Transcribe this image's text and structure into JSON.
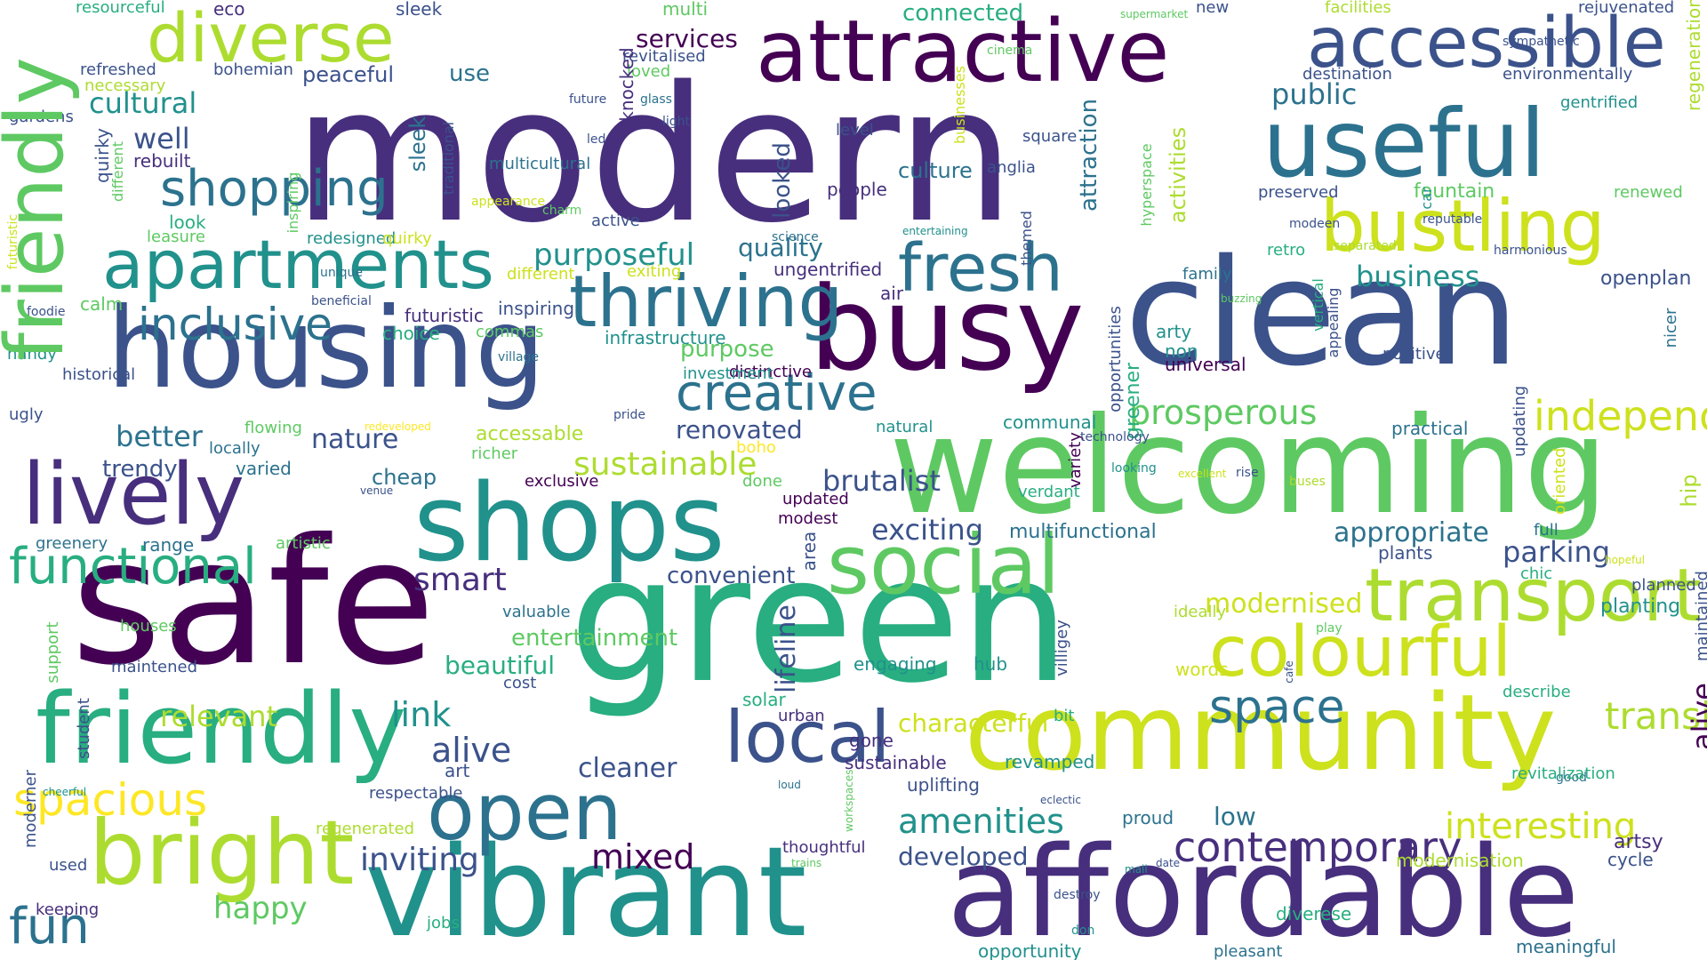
{
  "word_cloud": {
    "palette": [
      "#440154",
      "#472f7d",
      "#3b528b",
      "#2c728e",
      "#21918c",
      "#28ae80",
      "#5ec962",
      "#addc30",
      "#fde725"
    ],
    "words": [
      {
        "text": "modern",
        "c": "#472f7d"
      },
      {
        "text": "safe",
        "c": "#440154"
      },
      {
        "text": "green",
        "c": "#28ae80"
      },
      {
        "text": "clean",
        "c": "#3b528b"
      },
      {
        "text": "welcoming",
        "c": "#5ec962"
      },
      {
        "text": "vibrant",
        "c": "#21918c"
      },
      {
        "text": "affordable",
        "c": "#472f7d"
      },
      {
        "text": "community",
        "c": "#cde11d"
      },
      {
        "text": "attractive",
        "c": "#440154"
      },
      {
        "text": "useful",
        "c": "#2c728e"
      },
      {
        "text": "busy",
        "c": "#440154"
      },
      {
        "text": "housing",
        "c": "#3b528b"
      },
      {
        "text": "shops",
        "c": "#21918c"
      },
      {
        "text": "friendly",
        "c": "#5ec962"
      },
      {
        "text": "lively",
        "c": "#28ae80"
      },
      {
        "text": "social",
        "c": "#472f7d"
      },
      {
        "text": "accessible",
        "c": "#5ec962"
      },
      {
        "text": "bustling",
        "c": "#3b528b"
      },
      {
        "text": "diverse",
        "c": "#cde11d"
      },
      {
        "text": "apartments",
        "c": "#addc30"
      },
      {
        "text": "thriving",
        "c": "#21918c"
      },
      {
        "text": "fresh",
        "c": "#2c728e"
      },
      {
        "text": "bright",
        "c": "#2c728e"
      },
      {
        "text": "open",
        "c": "#addc30"
      },
      {
        "text": "colourful",
        "c": "#2c728e"
      },
      {
        "text": "transport",
        "c": "#cde11d"
      },
      {
        "text": "local",
        "c": "#addc30"
      },
      {
        "text": "fun",
        "c": "#3b528b"
      },
      {
        "text": "functional",
        "c": "#2c728e"
      },
      {
        "text": "inclusive",
        "c": "#28ae80"
      },
      {
        "text": "creative",
        "c": "#2c728e"
      },
      {
        "text": "shopping",
        "c": "#2c728e"
      },
      {
        "text": "space",
        "c": "#2c728e"
      },
      {
        "text": "spacious",
        "c": "#2c728e"
      },
      {
        "text": "prosperous",
        "c": "#fde725"
      },
      {
        "text": "independent",
        "c": "#5ec962"
      },
      {
        "text": "smart",
        "c": "#cde11d"
      },
      {
        "text": "sustainable",
        "c": "#472f7d"
      },
      {
        "text": "contemporary",
        "c": "#addc30"
      },
      {
        "text": "inviting",
        "c": "#472f7d"
      },
      {
        "text": "mixed",
        "c": "#3b528b"
      },
      {
        "text": "amenities",
        "c": "#440154"
      },
      {
        "text": "interesting",
        "c": "#21918c"
      },
      {
        "text": "transit",
        "c": "#cde11d"
      },
      {
        "text": "link",
        "c": "#addc30"
      },
      {
        "text": "alive",
        "c": "#440154"
      },
      {
        "text": "cleaner",
        "c": "#21918c"
      },
      {
        "text": "happy",
        "c": "#3b528b"
      },
      {
        "text": "exciting",
        "c": "#3b528b"
      },
      {
        "text": "better",
        "c": "#5ec962"
      },
      {
        "text": "nature",
        "c": "#3b528b"
      },
      {
        "text": "trendy",
        "c": "#2c728e"
      },
      {
        "text": "relevant",
        "c": "#3b528b"
      },
      {
        "text": "cultural",
        "c": "#3b528b"
      },
      {
        "text": "well",
        "c": "#addc30"
      },
      {
        "text": "purposeful",
        "c": "#21918c"
      },
      {
        "text": "public",
        "c": "#3b528b"
      },
      {
        "text": "business",
        "c": "#21918c"
      },
      {
        "text": "appropriate",
        "c": "#2c728e"
      },
      {
        "text": "modernised",
        "c": "#21918c"
      },
      {
        "text": "parking",
        "c": "#2c728e"
      },
      {
        "text": "developed",
        "c": "#cde11d"
      },
      {
        "text": "low",
        "c": "#3b528b"
      },
      {
        "text": "quality",
        "c": "#3b528b"
      },
      {
        "text": "characterful",
        "c": "#2c728e"
      },
      {
        "text": "renovated",
        "c": "#2c728e"
      },
      {
        "text": "brutalist",
        "c": "#cde11d"
      },
      {
        "text": "purpose",
        "c": "#3b528b"
      },
      {
        "text": "use",
        "c": "#3b528b"
      },
      {
        "text": "peaceful",
        "c": "#5ec962"
      },
      {
        "text": "connected",
        "c": "#2c728e"
      },
      {
        "text": "beautiful",
        "c": "#3b528b"
      },
      {
        "text": "entertainment",
        "c": "#28ae80"
      },
      {
        "text": "convenient",
        "c": "#28ae80"
      },
      {
        "text": "cheap",
        "c": "#5ec962"
      },
      {
        "text": "culture",
        "c": "#3b528b"
      },
      {
        "text": "services",
        "c": "#2c728e"
      },
      {
        "text": "eco",
        "c": "#2c728e"
      },
      {
        "text": "sleek",
        "c": "#2c728e"
      },
      {
        "text": "multi",
        "c": "#440154"
      },
      {
        "text": "resourceful",
        "c": "#472f7d"
      },
      {
        "text": "refreshed",
        "c": "#3b528b"
      },
      {
        "text": "necessary",
        "c": "#5ec962"
      },
      {
        "text": "bohemian",
        "c": "#28ae80"
      },
      {
        "text": "loved",
        "c": "#3b528b"
      },
      {
        "text": "revitalised",
        "c": "#addc30"
      },
      {
        "text": "gardens",
        "c": "#3b528b"
      },
      {
        "text": "rebuilt",
        "c": "#5ec962"
      },
      {
        "text": "look",
        "c": "#3b528b"
      },
      {
        "text": "leasure",
        "c": "#3b528b"
      },
      {
        "text": "redesigned",
        "c": "#472f7d"
      },
      {
        "text": "quirky",
        "c": "#3b528b"
      },
      {
        "text": "different",
        "c": "#5ec962"
      },
      {
        "text": "exiting",
        "c": "#28ae80"
      },
      {
        "text": "calm",
        "c": "#5ec962"
      },
      {
        "text": "foodie",
        "c": "#21918c"
      },
      {
        "text": "beneficial",
        "c": "#cde11d"
      },
      {
        "text": "futuristic",
        "c": "#cde11d"
      },
      {
        "text": "inspiring",
        "c": "#5ec962"
      },
      {
        "text": "choice",
        "c": "#cde11d"
      },
      {
        "text": "commas",
        "c": "#cde11d"
      },
      {
        "text": "infrastructure",
        "c": "#5ec962"
      },
      {
        "text": "handy",
        "c": "#3b528b"
      },
      {
        "text": "historical",
        "c": "#3b528b"
      },
      {
        "text": "ugly",
        "c": "#472f7d"
      },
      {
        "text": "flowing",
        "c": "#3b528b"
      },
      {
        "text": "locally",
        "c": "#28ae80"
      },
      {
        "text": "varied",
        "c": "#5ec962"
      },
      {
        "text": "venue",
        "c": "#21918c"
      },
      {
        "text": "greenery",
        "c": "#21918c"
      },
      {
        "text": "range",
        "c": "#3b528b"
      },
      {
        "text": "artistic",
        "c": "#3b528b"
      },
      {
        "text": "houses",
        "c": "#5ec962"
      },
      {
        "text": "maintened",
        "c": "#2c728e"
      },
      {
        "text": "village",
        "c": "#2c728e"
      },
      {
        "text": "support",
        "c": "#3b528b"
      },
      {
        "text": "student",
        "c": "#2c728e"
      },
      {
        "text": "cheerful",
        "c": "#2c728e"
      },
      {
        "text": "moderner",
        "c": "#5ec962"
      },
      {
        "text": "respectable",
        "c": "#21918c"
      },
      {
        "text": "regenerated",
        "c": "#5ec962"
      },
      {
        "text": "used",
        "c": "#3b528b"
      },
      {
        "text": "keeping",
        "c": "#5ec962"
      },
      {
        "text": "jobs",
        "c": "#3b528b"
      },
      {
        "text": "valuable",
        "c": "#21918c"
      },
      {
        "text": "cost",
        "c": "#3b528b"
      },
      {
        "text": "art",
        "c": "#3b528b"
      },
      {
        "text": "exclusive",
        "c": "#addc30"
      },
      {
        "text": "richer",
        "c": "#3b528b"
      },
      {
        "text": "accessable",
        "c": "#472f7d"
      },
      {
        "text": "done",
        "c": "#28ae80"
      },
      {
        "text": "updated",
        "c": "#2c728e"
      },
      {
        "text": "modest",
        "c": "#3b528b"
      },
      {
        "text": "area",
        "c": "#3b528b"
      },
      {
        "text": "multifunctional",
        "c": "#440154"
      },
      {
        "text": "verdant",
        "c": "#5ec962"
      },
      {
        "text": "variety",
        "c": "#addc30"
      },
      {
        "text": "bit",
        "c": "#5ec962"
      },
      {
        "text": "villigey",
        "c": "#440154"
      },
      {
        "text": "engaging",
        "c": "#440154"
      },
      {
        "text": "hub",
        "c": "#3b528b"
      },
      {
        "text": "urban",
        "c": "#2c728e"
      },
      {
        "text": "solar",
        "c": "#28ae80"
      },
      {
        "text": "gone",
        "c": "#440154"
      },
      {
        "text": "sustainable",
        "c": "#28ae80"
      },
      {
        "text": "uplifting",
        "c": "#3b528b"
      },
      {
        "text": "revamped",
        "c": "#21918c"
      },
      {
        "text": "loud",
        "c": "#21918c"
      },
      {
        "text": "workspaces",
        "c": "#472f7d"
      },
      {
        "text": "eclectic",
        "c": "#28ae80"
      },
      {
        "text": "thoughtful",
        "c": "#472f7d"
      },
      {
        "text": "trains",
        "c": "#472f7d"
      },
      {
        "text": "proud",
        "c": "#3b528b"
      },
      {
        "text": "date",
        "c": "#21918c"
      },
      {
        "text": "mall",
        "c": "#2c728e"
      },
      {
        "text": "destroy",
        "c": "#5ec962"
      },
      {
        "text": "don",
        "c": "#3b528b"
      },
      {
        "text": "diverese",
        "c": "#472f7d"
      },
      {
        "text": "opportunity",
        "c": "#5ec962"
      },
      {
        "text": "pleasant",
        "c": "#2c728e"
      },
      {
        "text": "meaningful",
        "c": "#3b528b"
      },
      {
        "text": "modernisation",
        "c": "#21918c"
      },
      {
        "text": "cycle",
        "c": "#3b528b"
      },
      {
        "text": "artsy",
        "c": "#21918c"
      },
      {
        "text": "good",
        "c": "#28ae80"
      },
      {
        "text": "revitalization",
        "c": "#21918c"
      },
      {
        "text": "describe",
        "c": "#2c728e"
      },
      {
        "text": "maintained",
        "c": "#2c728e"
      },
      {
        "text": "planned",
        "c": "#addc30"
      },
      {
        "text": "planting",
        "c": "#3b528b"
      },
      {
        "text": "chic",
        "c": "#472f7d"
      },
      {
        "text": "hopeful",
        "c": "#2c728e"
      },
      {
        "text": "full",
        "c": "#28ae80"
      },
      {
        "text": "plants",
        "c": "#28ae80"
      },
      {
        "text": "ideally",
        "c": "#3b528b"
      },
      {
        "text": "words",
        "c": "#3b528b"
      },
      {
        "text": "cafe",
        "c": "#21918c"
      },
      {
        "text": "excellent",
        "c": "#28ae80"
      },
      {
        "text": "practical",
        "c": "#cde11d"
      },
      {
        "text": "updating",
        "c": "#2c728e"
      },
      {
        "text": "oriented",
        "c": "#3b528b"
      },
      {
        "text": "hip",
        "c": "#addc30"
      },
      {
        "text": "nicer",
        "c": "#cde11d"
      },
      {
        "text": "openplan",
        "c": "#3b528b"
      },
      {
        "text": "positive",
        "c": "#cde11d"
      },
      {
        "text": "universal",
        "c": "#2c728e"
      },
      {
        "text": "non",
        "c": "#3b528b"
      },
      {
        "text": "arty",
        "c": "#cde11d"
      },
      {
        "text": "appealing",
        "c": "#addc30"
      },
      {
        "text": "vertical",
        "c": "#21918c"
      },
      {
        "text": "buzzing",
        "c": "#2c728e"
      },
      {
        "text": "family",
        "c": "#addc30"
      },
      {
        "text": "retro",
        "c": "#3b528b"
      },
      {
        "text": "car",
        "c": "#3b528b"
      },
      {
        "text": "renewed",
        "c": "#440154"
      },
      {
        "text": "fountain",
        "c": "#21918c"
      },
      {
        "text": "preserved",
        "c": "#21918c"
      },
      {
        "text": "hyperspace",
        "c": "#3b528b"
      },
      {
        "text": "activities",
        "c": "#28ae80"
      },
      {
        "text": "themed",
        "c": "#5ec962"
      },
      {
        "text": "anglia",
        "c": "#2c728e"
      },
      {
        "text": "square",
        "c": "#28ae80"
      },
      {
        "text": "people",
        "c": "#21918c"
      },
      {
        "text": "air",
        "c": "#5ec962"
      },
      {
        "text": "ungentrified",
        "c": "#5ec962"
      },
      {
        "text": "science",
        "c": "#3b528b"
      },
      {
        "text": "entertaining",
        "c": "#2c728e"
      },
      {
        "text": "opportunities",
        "c": "#5ec962"
      },
      {
        "text": "greener",
        "c": "#addc30"
      },
      {
        "text": "communal",
        "c": "#3b528b"
      },
      {
        "text": "natural",
        "c": "#3b528b"
      },
      {
        "text": "boho",
        "c": "#3b528b"
      },
      {
        "text": "redeveloped",
        "c": "#472f7d"
      },
      {
        "text": "distinctive",
        "c": "#472f7d"
      },
      {
        "text": "investment",
        "c": "#472f7d"
      },
      {
        "text": "lifeline",
        "c": "#2c728e"
      },
      {
        "text": "looked",
        "c": "#21918c"
      },
      {
        "text": "attraction",
        "c": "#3b528b"
      },
      {
        "text": "multicultural",
        "c": "#28ae80"
      },
      {
        "text": "active",
        "c": "#21918c"
      },
      {
        "text": "knocked",
        "c": "#21918c"
      },
      {
        "text": "traditional",
        "c": "#fde725"
      },
      {
        "text": "businesses",
        "c": "#fde725"
      },
      {
        "text": "cinema",
        "c": "#440154"
      },
      {
        "text": "level",
        "c": "#21918c"
      },
      {
        "text": "new",
        "c": "#3b528b"
      },
      {
        "text": "facilities",
        "c": "#3b528b"
      },
      {
        "text": "rejuvenated",
        "c": "#21918c"
      },
      {
        "text": "destination",
        "c": "#2c728e"
      },
      {
        "text": "environmentally",
        "c": "#21918c"
      },
      {
        "text": "gentrified",
        "c": "#addc30"
      },
      {
        "text": "sympathetic",
        "c": "#cde11d"
      },
      {
        "text": "regeneration",
        "c": "#472f7d"
      },
      {
        "text": "supermarket",
        "c": "#3b528b"
      },
      {
        "text": "future",
        "c": "#3b528b"
      },
      {
        "text": "glass",
        "c": "#2c728e"
      },
      {
        "text": "led",
        "c": "#3b528b"
      },
      {
        "text": "light",
        "c": "#3b528b"
      },
      {
        "text": "unique",
        "c": "#2c728e"
      },
      {
        "text": "appearance",
        "c": "#cde11d"
      },
      {
        "text": "charm",
        "c": "#5ec962"
      },
      {
        "text": "pride",
        "c": "#3b528b"
      },
      {
        "text": "modeen",
        "c": "#3b528b"
      },
      {
        "text": "separated",
        "c": "#addc30"
      },
      {
        "text": "reputable",
        "c": "#3b528b"
      },
      {
        "text": "harmonious",
        "c": "#3b528b"
      },
      {
        "text": "technology",
        "c": "#3b528b"
      },
      {
        "text": "looking",
        "c": "#21918c"
      },
      {
        "text": "rise",
        "c": "#3b528b"
      },
      {
        "text": "buses",
        "c": "#addc30"
      },
      {
        "text": "play",
        "c": "#5ec962"
      }
    ]
  }
}
